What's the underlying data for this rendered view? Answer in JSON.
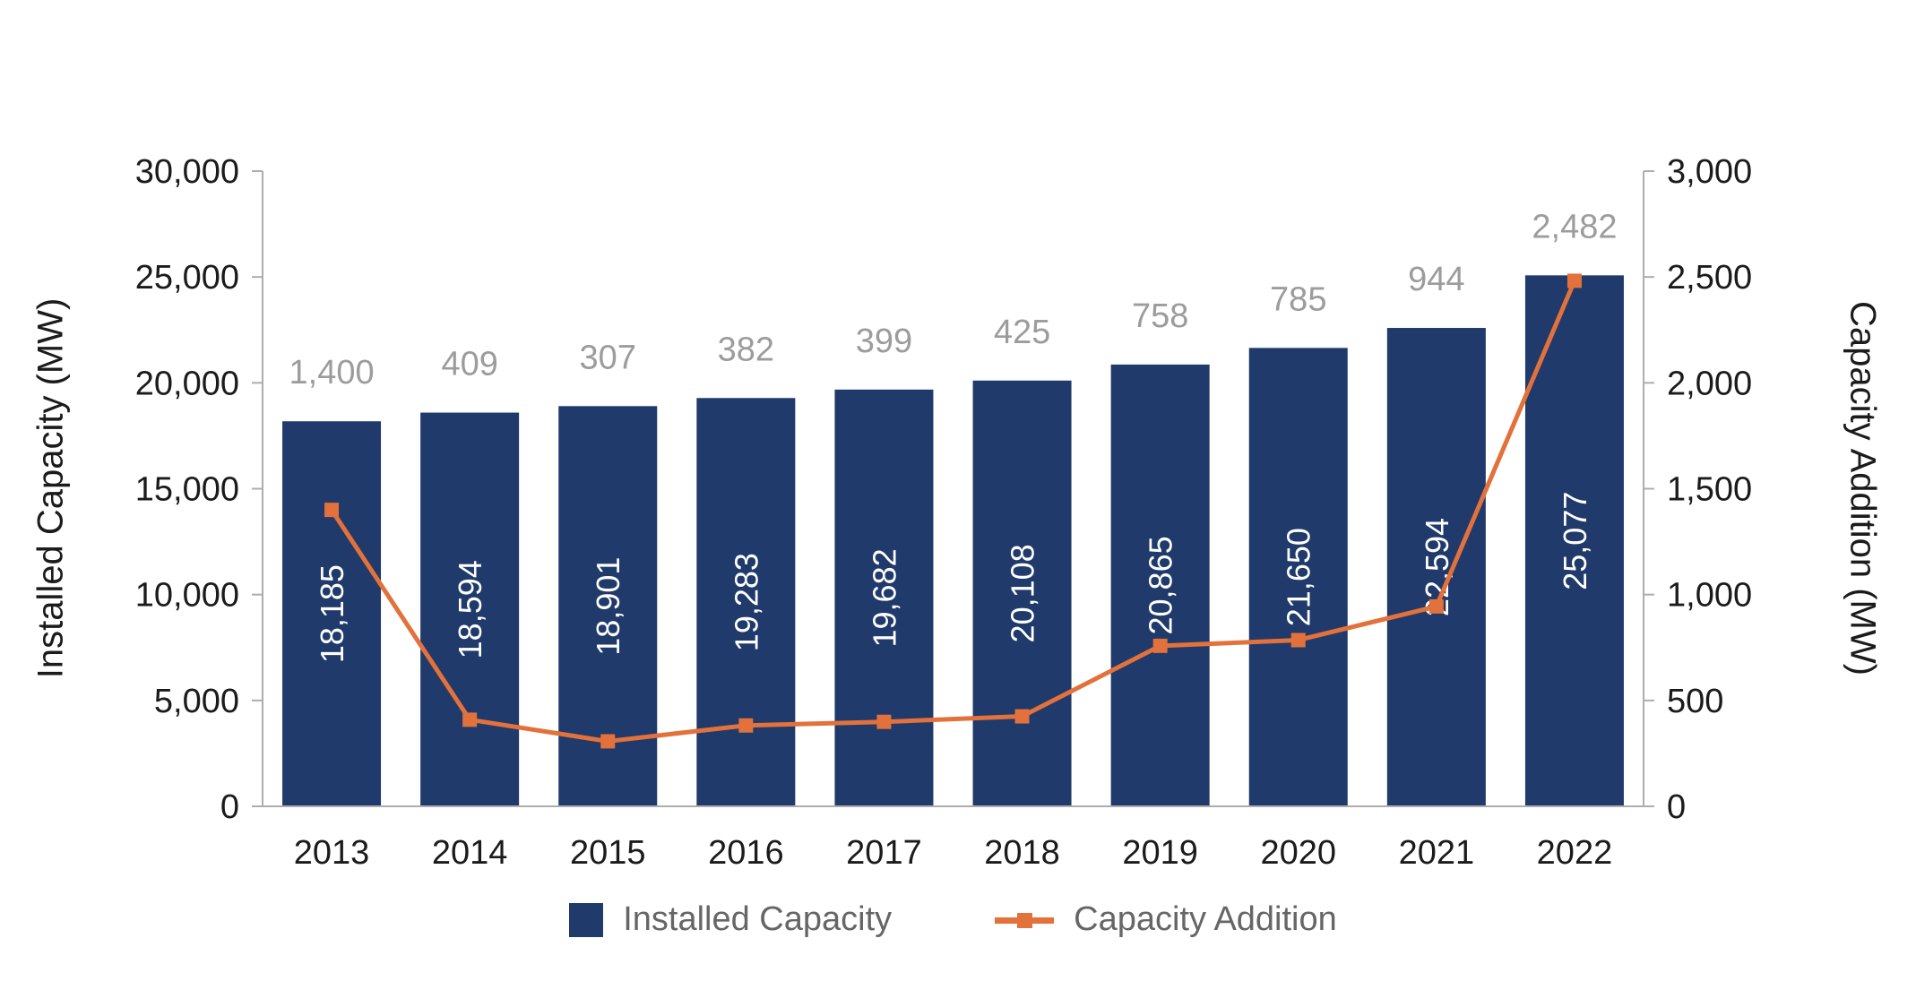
{
  "chart_data": {
    "type": "bar+line",
    "title": "",
    "categories": [
      "2013",
      "2014",
      "2015",
      "2016",
      "2017",
      "2018",
      "2019",
      "2020",
      "2021",
      "2022"
    ],
    "series": [
      {
        "name": "Installed Capacity",
        "type": "bar",
        "axis": "left",
        "color": "#1F3A6B",
        "values": [
          18185,
          18594,
          18901,
          19283,
          19682,
          20108,
          20865,
          21650,
          22594,
          25077
        ],
        "labels": [
          "18,185",
          "18,594",
          "18,901",
          "19,283",
          "19,682",
          "20,108",
          "20,865",
          "21,650",
          "22,594",
          "25,077"
        ]
      },
      {
        "name": "Capacity Addition",
        "type": "line",
        "axis": "right",
        "color": "#E2713B",
        "values": [
          1400,
          409,
          307,
          382,
          399,
          425,
          758,
          785,
          944,
          2482
        ],
        "labels": [
          "1,400",
          "409",
          "307",
          "382",
          "399",
          "425",
          "758",
          "785",
          "944",
          "2,482"
        ]
      }
    ],
    "left_axis": {
      "label": "Installed Capacity (MW)",
      "min": 0,
      "max": 30000,
      "step": 5000,
      "tick_labels": [
        "0",
        "5,000",
        "10,000",
        "15,000",
        "20,000",
        "25,000",
        "30,000"
      ]
    },
    "right_axis": {
      "label": "Capacity Addition (MW)",
      "min": 0,
      "max": 3000,
      "step": 500,
      "tick_labels": [
        "0",
        "500",
        "1,000",
        "1,500",
        "2,000",
        "2,500",
        "3,000"
      ]
    },
    "legend": {
      "position": "bottom",
      "items": [
        "Installed Capacity",
        "Capacity Addition"
      ]
    },
    "colors": {
      "bar": "#1F3A6B",
      "line": "#E2713B",
      "gray_value_label": "#9C9C9C",
      "bar_value_label": "#FFFFFF",
      "axis_line": "#ADADAD",
      "tick_text": "#1B1B1B",
      "legend_text": "#666666"
    },
    "layout": {
      "grid": false,
      "legend_position": "bottom-center"
    }
  }
}
